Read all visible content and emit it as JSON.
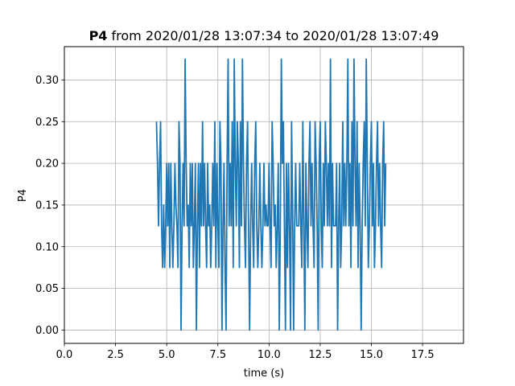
{
  "chart_data": {
    "type": "line",
    "title_bold": "P4",
    "title_rest": " from 2020/01/28 13:07:34 to 2020/01/28 13:07:49",
    "xlabel": "time (s)",
    "ylabel": "P4",
    "xlim": [
      0,
      19.5
    ],
    "ylim": [
      -0.016,
      0.34
    ],
    "xticks": [
      0,
      2.5,
      5,
      7.5,
      10,
      12.5,
      15,
      17.5
    ],
    "xtick_labels": [
      "0.0",
      "2.5",
      "5.0",
      "7.5",
      "10.0",
      "12.5",
      "15.0",
      "17.5"
    ],
    "yticks": [
      0,
      0.05,
      0.1,
      0.15,
      0.2,
      0.25,
      0.3
    ],
    "ytick_labels": [
      "0.00",
      "0.05",
      "0.10",
      "0.15",
      "0.20",
      "0.25",
      "0.30"
    ],
    "grid": true,
    "legend": "none",
    "line_color": "#1f77b4",
    "series": [
      {
        "x_start": 4.5,
        "dx": 0.05,
        "values": [
          0.25,
          0.2,
          0.125,
          0.2,
          0.25,
          0.125,
          0.075,
          0.15,
          0.075,
          0.125,
          0.2,
          0.125,
          0.2,
          0.075,
          0.2,
          0.125,
          0.075,
          0.125,
          0.2,
          0.15,
          0.125,
          0.075,
          0.25,
          0.2,
          0.0,
          0.125,
          0.2,
          0.125,
          0.325,
          0.2,
          0.125,
          0.15,
          0.075,
          0.2,
          0.125,
          0.2,
          0.075,
          0.125,
          0.2,
          0.0,
          0.125,
          0.2,
          0.075,
          0.2,
          0.125,
          0.25,
          0.125,
          0.2,
          0.125,
          0.075,
          0.2,
          0.125,
          0.15,
          0.075,
          0.125,
          0.2,
          0.125,
          0.25,
          0.075,
          0.2,
          0.125,
          0.075,
          0.25,
          0.2,
          0.0,
          0.125,
          0.2,
          0.075,
          0.0,
          0.2,
          0.325,
          0.125,
          0.2,
          0.125,
          0.25,
          0.075,
          0.325,
          0.2,
          0.125,
          0.25,
          0.2,
          0.075,
          0.25,
          0.125,
          0.325,
          0.2,
          0.125,
          0.075,
          0.2,
          0.25,
          0.125,
          0.0,
          0.125,
          0.2,
          0.125,
          0.075,
          0.2,
          0.25,
          0.125,
          0.075,
          0.125,
          0.2,
          0.125,
          0.075,
          0.125,
          0.2,
          0.125,
          0.15,
          0.125,
          0.125,
          0.2,
          0.125,
          0.075,
          0.25,
          0.2,
          0.125,
          0.15,
          0.075,
          0.125,
          0.2,
          0.0,
          0.125,
          0.325,
          0.2,
          0.25,
          0.125,
          0.0,
          0.2,
          0.075,
          0.2,
          0.125,
          0.0,
          0.25,
          0.15,
          0.0,
          0.125,
          0.2,
          0.125,
          0.125,
          0.125,
          0.2,
          0.125,
          0.075,
          0.25,
          0.125,
          0.0,
          0.2,
          0.125,
          0.075,
          0.2,
          0.25,
          0.125,
          0.2,
          0.125,
          0.075,
          0.25,
          0.2,
          0.125,
          0.0,
          0.2,
          0.25,
          0.125,
          0.075,
          0.2,
          0.125,
          0.25,
          0.2,
          0.125,
          0.2,
          0.125,
          0.325,
          0.075,
          0.2,
          0.125,
          0.125,
          0.125,
          0.2,
          0.0,
          0.125,
          0.2,
          0.075,
          0.125,
          0.25,
          0.125,
          0.2,
          0.125,
          0.2,
          0.325,
          0.125,
          0.2,
          0.075,
          0.25,
          0.125,
          0.325,
          0.2,
          0.125,
          0.25,
          0.075,
          0.2,
          0.125,
          0.0,
          0.125,
          0.2,
          0.25,
          0.125,
          0.325,
          0.2,
          0.075,
          0.125,
          0.2,
          0.25,
          0.125,
          0.2,
          0.075,
          0.125,
          0.2,
          0.25,
          0.125,
          0.2,
          0.125,
          0.075,
          0.2,
          0.25,
          0.125,
          0.2
        ]
      }
    ]
  }
}
